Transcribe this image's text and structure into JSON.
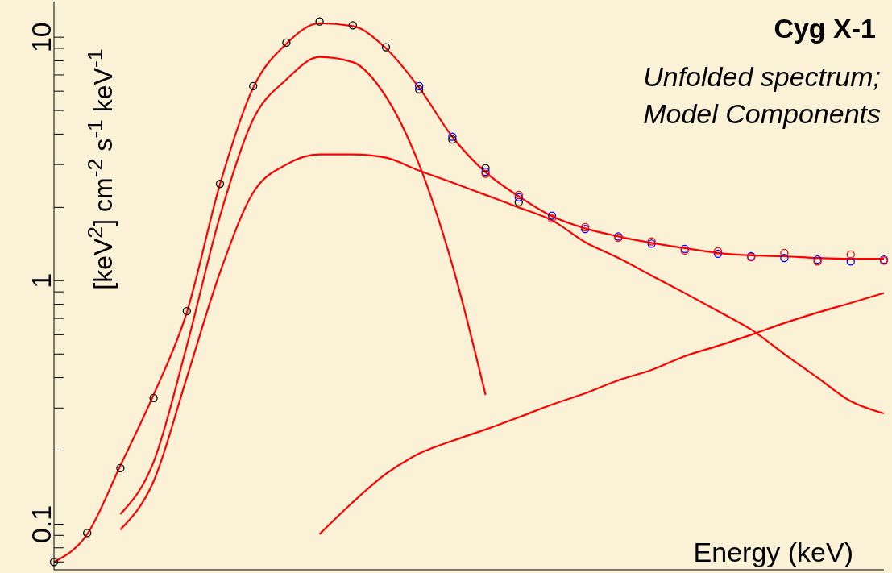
{
  "chart_data": {
    "type": "line",
    "title": "Cyg X-1",
    "subtitle": "Unfolded spectrum; Model Components",
    "xlabel": "Energy (keV)",
    "ylabel": "[keV$^{2}$] cm$^{-2}$ s$^{-1}$ keV$^{-1}$",
    "categories": [
      null,
      null,
      null,
      null,
      null,
      null,
      null,
      null,
      null,
      null,
      null,
      null,
      null,
      null,
      null,
      null,
      null,
      null,
      null,
      null,
      null,
      null,
      null,
      null,
      null,
      null
    ],
    "log": "y",
    "ylim": [
      0.065,
      14
    ],
    "yticks": [
      {
        "value": 0.07,
        "label": null
      },
      {
        "value": 0.08,
        "label": null
      },
      {
        "value": 0.09,
        "label": null
      },
      0.1,
      {
        "value": 0.2,
        "label": null
      },
      {
        "value": 0.3,
        "label": null
      },
      {
        "value": 0.4,
        "label": null
      },
      {
        "value": 0.5,
        "label": null
      },
      {
        "value": 0.6,
        "label": null
      },
      {
        "value": 0.7,
        "label": null
      },
      {
        "value": 0.8,
        "label": null
      },
      {
        "value": 0.9,
        "label": null
      },
      1,
      {
        "value": 2,
        "label": null
      },
      {
        "value": 3,
        "label": null
      },
      {
        "value": 4,
        "label": null
      },
      {
        "value": 5,
        "label": null
      },
      {
        "value": 6,
        "label": null
      },
      {
        "value": 7,
        "label": null
      },
      {
        "value": 8,
        "label": null
      },
      {
        "value": 9,
        "label": null
      },
      10
    ],
    "tick_labels": "y",
    "series": [
      {
        "color": "#ff0000",
        "values": [
          0.07,
          0.091,
          0.174,
          0.34,
          0.74,
          2.49,
          6.2,
          9.4,
          11.4,
          11.1,
          9.0,
          6.2,
          3.9,
          2.79,
          2.22,
          1.84,
          1.64,
          1.52,
          1.43,
          1.36,
          1.3,
          1.27,
          1.26,
          1.24,
          1.23,
          1.23
        ]
      },
      {
        "color": "#ff0000",
        "values": [
          null,
          null,
          0.11,
          0.18,
          0.54,
          1.84,
          4.6,
          6.7,
          8.3,
          7.9,
          5.7,
          3.0,
          1.16,
          0.34,
          null,
          null,
          null,
          null,
          null,
          null,
          null,
          null,
          null,
          null,
          null,
          null
        ]
      },
      {
        "color": "#ff0000",
        "values": [
          null,
          null,
          0.095,
          0.15,
          0.4,
          1.08,
          2.3,
          3.0,
          3.3,
          3.3,
          3.2,
          2.83,
          2.53,
          2.25,
          2.0,
          1.77,
          1.44,
          1.24,
          1.05,
          0.89,
          0.75,
          0.63,
          0.5,
          0.4,
          0.32,
          0.285
        ]
      },
      {
        "color": "#ff0000",
        "values": [
          null,
          null,
          null,
          null,
          null,
          null,
          null,
          null,
          0.091,
          0.123,
          0.161,
          0.195,
          0.22,
          0.245,
          0.275,
          0.31,
          0.345,
          0.39,
          0.43,
          0.49,
          0.54,
          0.6,
          0.67,
          0.74,
          0.81,
          0.89
        ]
      },
      {
        "type": "scatter",
        "marker": "circle",
        "color": "#000000",
        "values": [
          0.07,
          0.092,
          0.17,
          0.33,
          0.75,
          2.5,
          6.3,
          9.5,
          11.6,
          11.2,
          9.1,
          6.1,
          3.8,
          2.9,
          2.1,
          null,
          null,
          null,
          null,
          null,
          null,
          null,
          null,
          null,
          null,
          null
        ]
      },
      {
        "type": "scatter",
        "marker": "circle",
        "color": "#0000ff",
        "values": [
          null,
          null,
          null,
          null,
          null,
          null,
          null,
          null,
          null,
          null,
          null,
          6.3,
          3.9,
          2.8,
          2.2,
          1.85,
          1.63,
          1.52,
          1.42,
          1.35,
          1.29,
          1.26,
          1.24,
          1.22,
          1.2,
          1.22
        ]
      },
      {
        "type": "scatter",
        "marker": "circle",
        "color": "#ff0000",
        "values": [
          null,
          null,
          null,
          null,
          null,
          null,
          null,
          null,
          null,
          null,
          null,
          null,
          null,
          2.75,
          2.25,
          1.8,
          1.66,
          1.5,
          1.45,
          1.33,
          1.32,
          1.25,
          1.3,
          1.2,
          1.28,
          1.21
        ]
      }
    ]
  }
}
